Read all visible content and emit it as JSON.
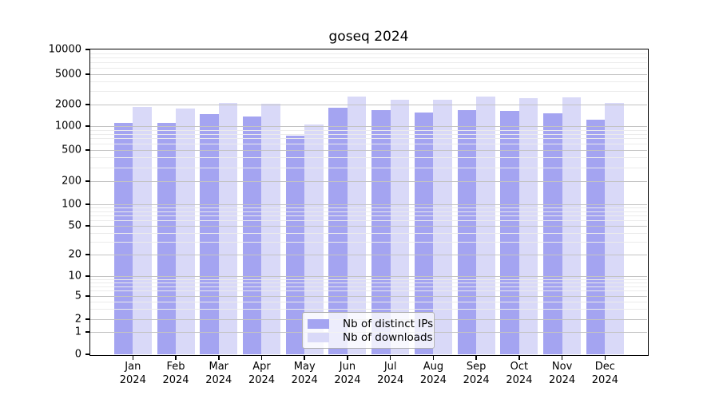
{
  "chart_data": {
    "type": "bar",
    "title": "goseq 2024",
    "categories": [
      "Jan",
      "Feb",
      "Mar",
      "Apr",
      "May",
      "Jun",
      "Jul",
      "Aug",
      "Sep",
      "Oct",
      "Nov",
      "Dec"
    ],
    "category_year": "2024",
    "series": [
      {
        "name": "Nb of distinct IPs",
        "color": "#a4a4f1",
        "values": [
          1100,
          1100,
          1460,
          1370,
          760,
          1790,
          1670,
          1560,
          1680,
          1620,
          1490,
          1240
        ]
      },
      {
        "name": "Nb of downloads",
        "color": "#d9d9f8",
        "values": [
          1840,
          1780,
          2080,
          2050,
          1050,
          2550,
          2330,
          2300,
          2560,
          2400,
          2480,
          2080
        ]
      }
    ],
    "y_ticks": [
      0,
      1,
      2,
      5,
      10,
      20,
      50,
      100,
      200,
      500,
      1000,
      2000,
      5000,
      10000
    ],
    "y_scale": "log-with-zero",
    "ylim": [
      0,
      10000
    ],
    "xlabel": "",
    "ylabel": "",
    "grid": true,
    "legend_position": "bottom-center",
    "colors": {
      "grid_major": "#c3c3c3",
      "grid_minor": "#ebebeb",
      "axis": "#000000",
      "background": "#ffffff"
    }
  }
}
